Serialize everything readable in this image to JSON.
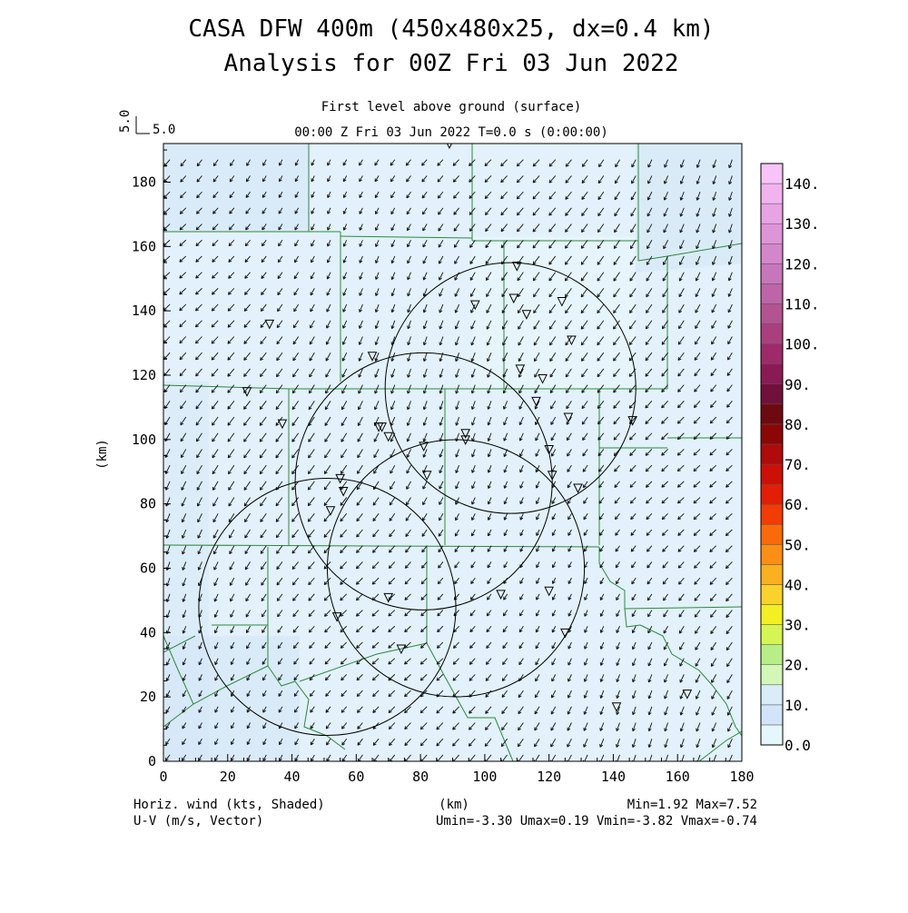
{
  "header": {
    "title_line1": "CASA DFW 400m (450x480x25, dx=0.4 km)",
    "title_line2": "Analysis for 00Z Fri 03 Jun 2022",
    "level_label": "First level above ground (surface)",
    "time_label": "00:00 Z Fri 03 Jun 2022    T=0.0 s (0:00:00)",
    "ref_vector_label_vertical": "5.0",
    "ref_vector_label": "5.0"
  },
  "footer": {
    "left_line1": "Horiz. wind (kts, Shaded)",
    "left_line2": "U-V (m/s, Vector)",
    "center": "(km)",
    "right_line1": "Min=1.92 Max=7.52",
    "right_line2": "Umin=-3.30 Umax=0.19 Vmin=-3.82 Vmax=-0.74"
  },
  "chart_data": {
    "type": "heatmap",
    "title": "CASA DFW 400m (450x480x25, dx=0.4 km)",
    "subtitle": "Analysis for 00Z Fri 03 Jun 2022",
    "xlabel": "(km)",
    "ylabel": "(km)",
    "xlim": [
      0,
      180
    ],
    "ylim": [
      0,
      192
    ],
    "x_ticks": [
      0,
      20,
      40,
      60,
      80,
      100,
      120,
      140,
      160,
      180
    ],
    "y_ticks": [
      0,
      20,
      40,
      60,
      80,
      100,
      120,
      140,
      160,
      180
    ],
    "field_shaded": "Horizontal wind speed (kts)",
    "field_vector": "U-V wind (m/s)",
    "min": 1.92,
    "max": 7.52,
    "umin": -3.3,
    "umax": 0.19,
    "vmin": -3.82,
    "vmax": -0.74,
    "colorbar": {
      "levels": [
        "0.0",
        "10.",
        "20.",
        "30.",
        "40.",
        "50.",
        "60.",
        "70.",
        "80.",
        "90.",
        "100.",
        "110.",
        "120.",
        "130.",
        "140."
      ],
      "colors": [
        "#e6f6fd",
        "#d2e4fa",
        "#d9ecf7",
        "#d2f7b6",
        "#b7ee87",
        "#d4f553",
        "#f2ef23",
        "#fbd12c",
        "#fbb020",
        "#fb8e15",
        "#fa6a0b",
        "#f23c06",
        "#e21e06",
        "#cc1005",
        "#b00a0a",
        "#8c0606",
        "#6c0a0f",
        "#71103a",
        "#8a1a55",
        "#9e2a6a",
        "#ab3f7e",
        "#b35392",
        "#bd65a8",
        "#c876bb",
        "#d486cb",
        "#de94d8",
        "#e8a3e4",
        "#f1b3ef",
        "#f6c4f6"
      ],
      "steps_per_level": 2
    },
    "radar_circles": [
      {
        "cx": 108,
        "cy": 116,
        "r": 39
      },
      {
        "cx": 81,
        "cy": 87,
        "r": 40
      },
      {
        "cx": 91,
        "cy": 60,
        "r": 40
      },
      {
        "cx": 51,
        "cy": 48,
        "r": 40
      }
    ],
    "stations": [
      [
        89,
        192
      ],
      [
        110,
        154
      ],
      [
        97,
        142
      ],
      [
        109,
        144
      ],
      [
        113,
        139
      ],
      [
        124,
        143
      ],
      [
        127,
        131
      ],
      [
        33,
        136
      ],
      [
        65,
        126
      ],
      [
        111,
        122
      ],
      [
        118,
        119
      ],
      [
        26,
        115
      ],
      [
        116,
        112
      ],
      [
        126,
        107
      ],
      [
        37,
        105
      ],
      [
        67,
        104
      ],
      [
        68,
        104
      ],
      [
        70,
        101
      ],
      [
        146,
        106
      ],
      [
        94,
        102
      ],
      [
        94,
        100
      ],
      [
        81,
        98
      ],
      [
        120,
        97
      ],
      [
        82,
        89
      ],
      [
        121,
        89
      ],
      [
        129,
        85
      ],
      [
        55,
        88
      ],
      [
        56,
        84
      ],
      [
        52,
        78
      ],
      [
        70,
        51
      ],
      [
        105,
        52
      ],
      [
        120,
        53
      ],
      [
        54,
        45
      ],
      [
        125,
        40
      ],
      [
        74,
        35
      ],
      [
        141,
        17
      ],
      [
        163,
        21
      ]
    ],
    "wind_field": {
      "mean_u_ms": -1.6,
      "mean_v_ms": -2.5,
      "grid_spacing_km": 5
    }
  }
}
